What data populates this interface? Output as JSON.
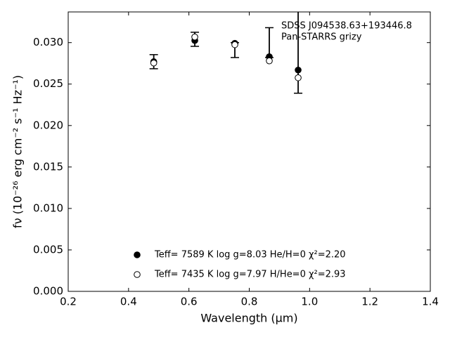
{
  "chart_data": {
    "type": "scatter",
    "xlabel": "Wavelength (μm)",
    "ylabel": "fν (10⁻²⁶ erg cm⁻² s⁻¹ Hz⁻¹)",
    "annotations": [
      "SDSS J094538.63+193446.8",
      "Pan-STARRS grizy"
    ],
    "x": [
      0.4835,
      0.6195,
      0.7522,
      0.8664,
      0.962
    ],
    "observed": {
      "values": [
        0.0277,
        0.0304,
        0.0291,
        0.03,
        0.029
      ],
      "errors": [
        0.00085,
        0.00085,
        0.0009,
        0.0018,
        0.0051
      ],
      "color": "#000000"
    },
    "series": [
      {
        "name": "Teff=  7589 K  log g=8.03  He/H=0  χ²=2.20",
        "marker": "filled",
        "color": "#000000",
        "values": [
          0.0277,
          0.03025,
          0.02992,
          0.0283,
          0.02669
        ]
      },
      {
        "name": "Teff=  7435 K  log g=7.97  H/He=0  χ²=2.93",
        "marker": "open",
        "color": "#000000",
        "values": [
          0.02754,
          0.03068,
          0.02975,
          0.0278,
          0.02576
        ]
      }
    ],
    "xlim": [
      0.2,
      1.4
    ],
    "xticks": [
      0.2,
      0.4,
      0.6,
      0.8,
      {
        "value": 1,
        "label": "1.0"
      },
      1.2,
      1.4
    ],
    "ylim": [
      0,
      0.0337
    ],
    "yticks": [
      {
        "value": 0,
        "label": "0.000"
      },
      {
        "value": 0.005,
        "label": "0.005"
      },
      {
        "value": 0.01,
        "label": "0.010"
      },
      {
        "value": 0.015,
        "label": "0.015"
      },
      {
        "value": 0.02,
        "label": "0.020"
      },
      {
        "value": 0.025,
        "label": "0.025"
      },
      {
        "value": 0.03,
        "label": "0.030"
      }
    ],
    "tick_direction": "in",
    "legend": "lower center"
  }
}
